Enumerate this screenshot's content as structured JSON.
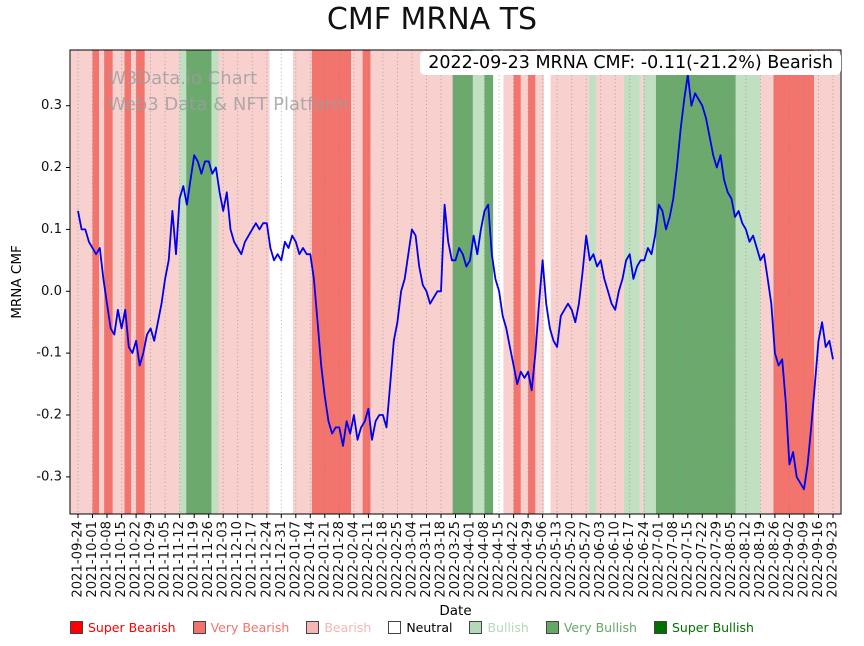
{
  "title": "CMF MRNA TS",
  "annotation": {
    "text": "2022-09-23 MRNA CMF: -0.11(-21.2%) Bearish",
    "date": "2022-09-23",
    "cmf": -0.11,
    "change_pct": -21.2,
    "sentiment": "Bearish"
  },
  "watermark": {
    "line1": "W3Data.io Chart",
    "line2": "Web3 Data & NFT Platform"
  },
  "chart_data": {
    "type": "line",
    "title": "CMF MRNA TS",
    "xlabel": "Date",
    "ylabel": "MRNA CMF",
    "ylim": [
      -0.36,
      0.39
    ],
    "yticks": [
      0.3,
      0.2,
      0.1,
      0.0,
      -0.1,
      -0.2,
      -0.3
    ],
    "grid": "vertical-dotted-weekly",
    "legend_position": "bottom",
    "x_tick_labels": [
      "2021-09-24",
      "2021-10-01",
      "2021-10-08",
      "2021-10-15",
      "2021-10-22",
      "2021-10-29",
      "2021-11-05",
      "2021-11-12",
      "2021-11-19",
      "2021-11-26",
      "2021-12-03",
      "2021-12-10",
      "2021-12-17",
      "2021-12-24",
      "2021-12-31",
      "2022-01-07",
      "2022-01-14",
      "2022-01-21",
      "2022-01-28",
      "2022-02-04",
      "2022-02-11",
      "2022-02-18",
      "2022-02-25",
      "2022-03-04",
      "2022-03-11",
      "2022-03-18",
      "2022-03-25",
      "2022-04-01",
      "2022-04-08",
      "2022-04-15",
      "2022-04-22",
      "2022-04-29",
      "2022-05-06",
      "2022-05-13",
      "2022-05-20",
      "2022-05-27",
      "2022-06-03",
      "2022-06-10",
      "2022-06-17",
      "2022-06-24",
      "2022-07-01",
      "2022-07-08",
      "2022-07-15",
      "2022-07-22",
      "2022-07-29",
      "2022-08-05",
      "2022-08-12",
      "2022-08-19",
      "2022-08-26",
      "2022-09-02",
      "2022-09-09",
      "2022-09-16",
      "2022-09-23"
    ],
    "series": [
      {
        "name": "MRNA CMF",
        "color": "#0000ee",
        "x_spacing": "evenly spaced daily points across week indices 0-52",
        "values": [
          0.13,
          0.1,
          0.1,
          0.08,
          0.07,
          0.06,
          0.07,
          0.02,
          -0.02,
          -0.06,
          -0.07,
          -0.03,
          -0.06,
          -0.03,
          -0.09,
          -0.1,
          -0.08,
          -0.12,
          -0.1,
          -0.07,
          -0.06,
          -0.08,
          -0.05,
          -0.02,
          0.02,
          0.05,
          0.13,
          0.06,
          0.15,
          0.17,
          0.14,
          0.18,
          0.22,
          0.21,
          0.19,
          0.21,
          0.21,
          0.19,
          0.2,
          0.16,
          0.13,
          0.16,
          0.1,
          0.08,
          0.07,
          0.06,
          0.08,
          0.09,
          0.1,
          0.11,
          0.1,
          0.11,
          0.11,
          0.07,
          0.05,
          0.06,
          0.05,
          0.08,
          0.07,
          0.09,
          0.08,
          0.06,
          0.07,
          0.06,
          0.06,
          0.02,
          -0.05,
          -0.12,
          -0.17,
          -0.21,
          -0.23,
          -0.22,
          -0.22,
          -0.25,
          -0.21,
          -0.23,
          -0.2,
          -0.24,
          -0.22,
          -0.21,
          -0.19,
          -0.24,
          -0.21,
          -0.2,
          -0.2,
          -0.22,
          -0.15,
          -0.08,
          -0.05,
          0.0,
          0.02,
          0.06,
          0.1,
          0.09,
          0.04,
          0.01,
          0.0,
          -0.02,
          -0.01,
          0.0,
          0.0,
          0.14,
          0.08,
          0.05,
          0.05,
          0.07,
          0.06,
          0.04,
          0.05,
          0.09,
          0.06,
          0.1,
          0.13,
          0.14,
          0.06,
          0.02,
          0.0,
          -0.04,
          -0.06,
          -0.09,
          -0.12,
          -0.15,
          -0.13,
          -0.14,
          -0.13,
          -0.16,
          -0.1,
          -0.02,
          0.05,
          -0.02,
          -0.06,
          -0.08,
          -0.09,
          -0.04,
          -0.03,
          -0.02,
          -0.03,
          -0.05,
          -0.02,
          0.03,
          0.09,
          0.05,
          0.06,
          0.04,
          0.05,
          0.02,
          0.0,
          -0.02,
          -0.03,
          0.0,
          0.02,
          0.05,
          0.06,
          0.02,
          0.04,
          0.05,
          0.05,
          0.07,
          0.06,
          0.09,
          0.14,
          0.13,
          0.1,
          0.12,
          0.15,
          0.2,
          0.26,
          0.31,
          0.35,
          0.3,
          0.32,
          0.31,
          0.3,
          0.28,
          0.25,
          0.22,
          0.2,
          0.22,
          0.18,
          0.16,
          0.15,
          0.12,
          0.13,
          0.11,
          0.1,
          0.08,
          0.09,
          0.07,
          0.05,
          0.06,
          0.02,
          -0.02,
          -0.1,
          -0.12,
          -0.11,
          -0.18,
          -0.28,
          -0.26,
          -0.3,
          -0.31,
          -0.32,
          -0.28,
          -0.22,
          -0.15,
          -0.08,
          -0.05,
          -0.09,
          -0.08,
          -0.11
        ]
      }
    ],
    "band_colors": {
      "super-bearish": "#e60000",
      "very-bearish": "#f3736d",
      "bearish": "#f8d1cf",
      "neutral": "#ffffff",
      "bullish": "#c0e0c1",
      "very-bullish": "#6ca96d",
      "super-bullish": "#1e7a1e"
    },
    "sentiment_bands": [
      {
        "from": -0.5,
        "to": 1.0,
        "level": "bearish"
      },
      {
        "from": 1.0,
        "to": 1.45,
        "level": "very-bearish"
      },
      {
        "from": 1.45,
        "to": 1.8,
        "level": "bearish"
      },
      {
        "from": 1.8,
        "to": 2.4,
        "level": "very-bearish"
      },
      {
        "from": 2.4,
        "to": 3.2,
        "level": "bearish"
      },
      {
        "from": 3.2,
        "to": 3.65,
        "level": "very-bearish"
      },
      {
        "from": 3.65,
        "to": 4.0,
        "level": "bearish"
      },
      {
        "from": 4.0,
        "to": 4.6,
        "level": "very-bearish"
      },
      {
        "from": 4.6,
        "to": 7.0,
        "level": "bearish"
      },
      {
        "from": 7.0,
        "to": 7.45,
        "level": "bullish"
      },
      {
        "from": 7.45,
        "to": 9.2,
        "level": "very-bullish"
      },
      {
        "from": 9.2,
        "to": 9.7,
        "level": "bullish"
      },
      {
        "from": 9.7,
        "to": 13.2,
        "level": "bearish"
      },
      {
        "from": 13.2,
        "to": 14.8,
        "level": "neutral"
      },
      {
        "from": 14.8,
        "to": 16.1,
        "level": "bearish"
      },
      {
        "from": 16.1,
        "to": 18.8,
        "level": "very-bearish"
      },
      {
        "from": 18.8,
        "to": 19.6,
        "level": "bearish"
      },
      {
        "from": 19.6,
        "to": 20.15,
        "level": "very-bearish"
      },
      {
        "from": 20.15,
        "to": 25.8,
        "level": "bearish"
      },
      {
        "from": 25.8,
        "to": 27.2,
        "level": "very-bullish"
      },
      {
        "from": 27.2,
        "to": 28.0,
        "level": "bullish"
      },
      {
        "from": 28.0,
        "to": 28.6,
        "level": "very-bullish"
      },
      {
        "from": 28.6,
        "to": 29.3,
        "level": "neutral"
      },
      {
        "from": 29.3,
        "to": 30.0,
        "level": "bearish"
      },
      {
        "from": 30.0,
        "to": 30.5,
        "level": "very-bearish"
      },
      {
        "from": 30.5,
        "to": 31.0,
        "level": "bearish"
      },
      {
        "from": 31.0,
        "to": 31.5,
        "level": "very-bearish"
      },
      {
        "from": 31.5,
        "to": 32.1,
        "level": "bearish"
      },
      {
        "from": 32.1,
        "to": 32.55,
        "level": "neutral"
      },
      {
        "from": 32.55,
        "to": 35.2,
        "level": "bearish"
      },
      {
        "from": 35.2,
        "to": 35.7,
        "level": "bullish"
      },
      {
        "from": 35.7,
        "to": 37.6,
        "level": "bearish"
      },
      {
        "from": 37.6,
        "to": 38.7,
        "level": "bullish"
      },
      {
        "from": 38.7,
        "to": 38.9,
        "level": "bearish"
      },
      {
        "from": 38.9,
        "to": 39.8,
        "level": "bullish"
      },
      {
        "from": 39.8,
        "to": 45.3,
        "level": "very-bullish"
      },
      {
        "from": 45.3,
        "to": 47.0,
        "level": "bullish"
      },
      {
        "from": 47.0,
        "to": 47.9,
        "level": "bearish"
      },
      {
        "from": 47.9,
        "to": 50.7,
        "level": "very-bearish"
      },
      {
        "from": 50.7,
        "to": 52.5,
        "level": "bearish"
      }
    ]
  },
  "legend": {
    "items": [
      {
        "label": "Super Bearish",
        "color": "#ff0000",
        "text_color": "#ff0000"
      },
      {
        "label": "Very Bearish",
        "color": "#f3726c",
        "text_color": "#f3726c"
      },
      {
        "label": "Bearish",
        "color": "#f6b6b3",
        "text_color": "#f6b6b3"
      },
      {
        "label": "Neutral",
        "color": "#ffffff",
        "text_color": "#000000"
      },
      {
        "label": "Bullish",
        "color": "#b5d9b6",
        "text_color": "#b5d9b6"
      },
      {
        "label": "Very Bullish",
        "color": "#64a767",
        "text_color": "#64a767"
      },
      {
        "label": "Super Bullish",
        "color": "#007000",
        "text_color": "#007000"
      }
    ]
  }
}
